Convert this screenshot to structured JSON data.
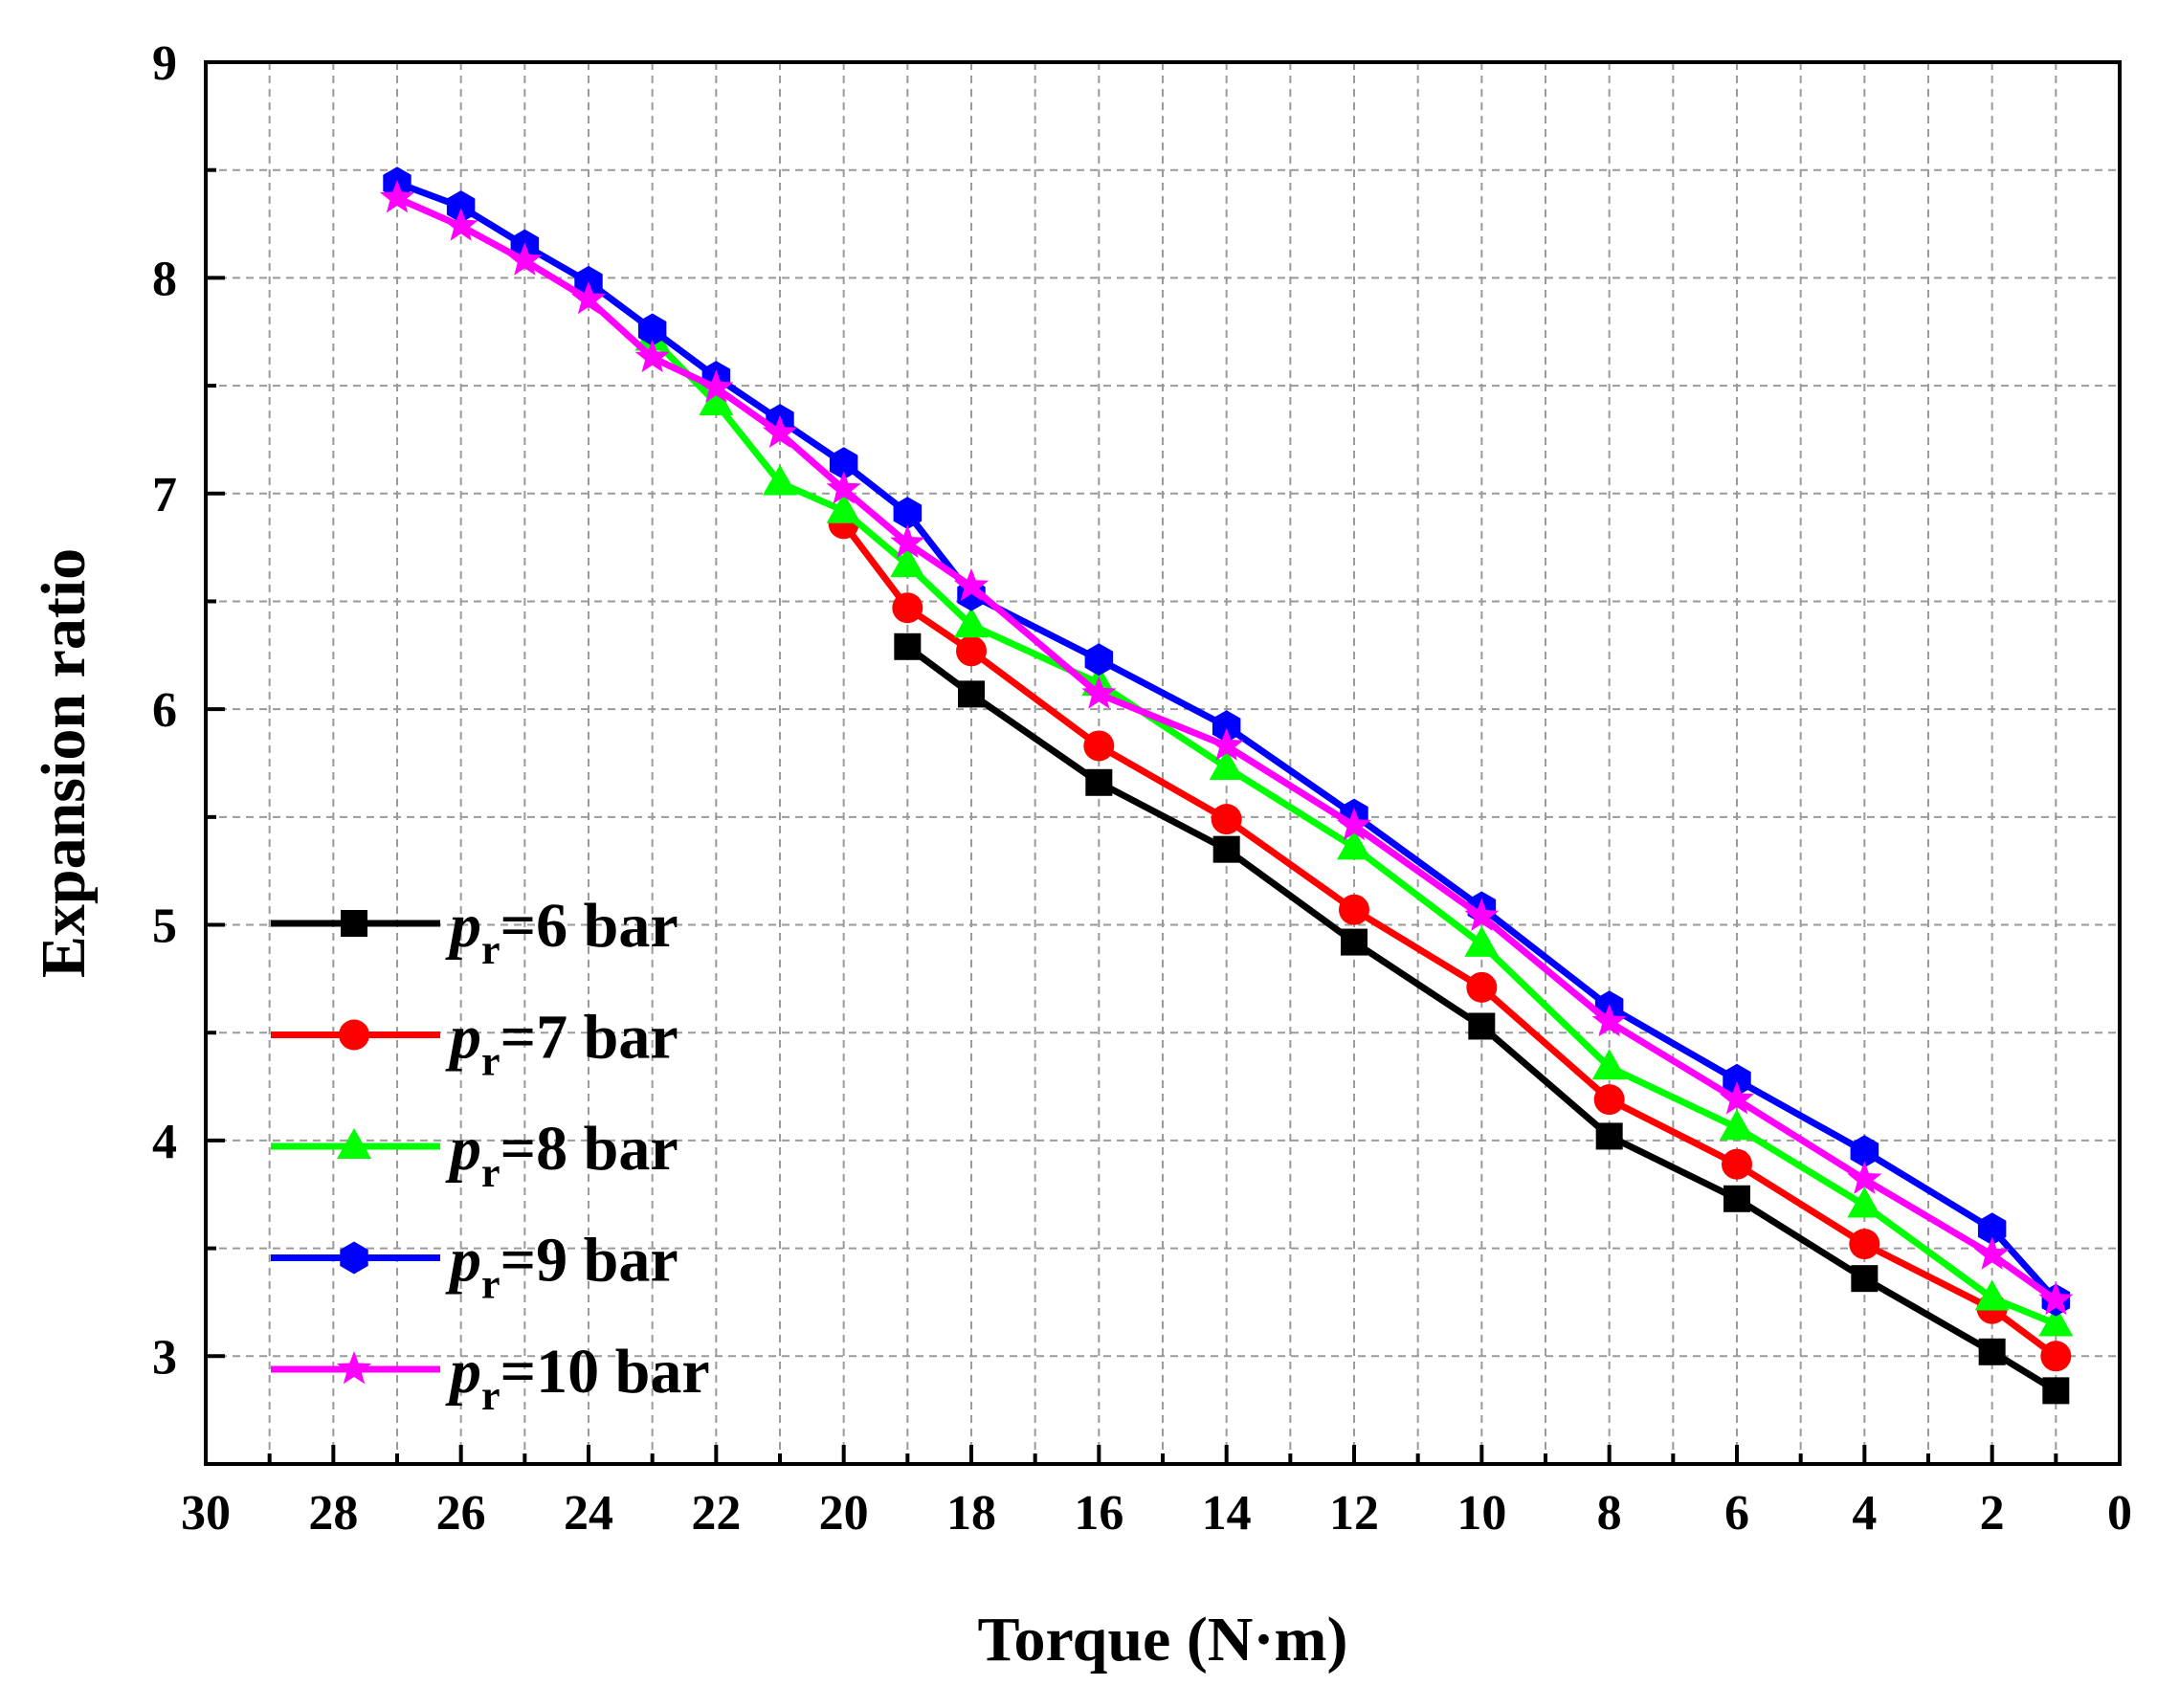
{
  "chart_data": {
    "type": "line",
    "title": "",
    "xlabel": "Torque (N·m)",
    "ylabel": "Expansion ratio",
    "xlim": [
      30,
      0
    ],
    "ylim": [
      2.5,
      9
    ],
    "x_ticks": [
      30,
      28,
      26,
      24,
      22,
      20,
      18,
      16,
      14,
      12,
      10,
      8,
      6,
      4,
      2,
      0
    ],
    "x_tick_labels": [
      "30",
      "28",
      "26",
      "24",
      "22",
      "20",
      "18",
      "16",
      "14",
      "12",
      "10",
      "8",
      "6",
      "4",
      "2",
      "0"
    ],
    "y_ticks": [
      3,
      4,
      5,
      6,
      7,
      8,
      9
    ],
    "y_tick_labels": [
      "3",
      "4",
      "5",
      "6",
      "7",
      "8",
      "9"
    ],
    "grid": true,
    "legend_position": "left",
    "series": [
      {
        "name": "pr=6 bar",
        "label_var": "p",
        "label_sub": "r",
        "label_rest": "=6 bar",
        "color": "#000000",
        "marker": "square",
        "x": [
          19,
          18,
          16,
          14,
          12,
          10,
          8,
          6,
          4,
          2,
          1
        ],
        "values": [
          6.29,
          6.07,
          5.66,
          5.35,
          4.92,
          4.53,
          4.02,
          3.73,
          3.36,
          3.02,
          2.84
        ]
      },
      {
        "name": "pr=7 bar",
        "label_var": "p",
        "label_sub": "r",
        "label_rest": "=7 bar",
        "color": "#ff0000",
        "marker": "circle",
        "x": [
          20,
          19,
          18,
          16,
          14,
          12,
          10,
          8,
          6,
          4,
          2,
          1
        ],
        "values": [
          6.86,
          6.47,
          6.27,
          5.83,
          5.49,
          5.07,
          4.71,
          4.19,
          3.89,
          3.52,
          3.22,
          3.0
        ]
      },
      {
        "name": "pr=8 bar",
        "label_var": "p",
        "label_sub": "r",
        "label_rest": "=8 bar",
        "color": "#00ff00",
        "marker": "triangle",
        "x": [
          23,
          22,
          21,
          20,
          19,
          18,
          16,
          14,
          12,
          10,
          8,
          6,
          4,
          2,
          1
        ],
        "values": [
          7.72,
          7.42,
          7.05,
          6.92,
          6.67,
          6.39,
          6.12,
          5.73,
          5.36,
          4.91,
          4.34,
          4.06,
          3.7,
          3.27,
          3.15
        ]
      },
      {
        "name": "pr=9 bar",
        "label_var": "p",
        "label_sub": "r",
        "label_rest": "=9 bar",
        "color": "#0000ff",
        "marker": "hexagon",
        "x": [
          27,
          26,
          25,
          24,
          23,
          22,
          21,
          20,
          19,
          18,
          16,
          14,
          12,
          10,
          8,
          6,
          4,
          2,
          1
        ],
        "values": [
          8.44,
          8.33,
          8.15,
          7.98,
          7.76,
          7.54,
          7.34,
          7.14,
          6.91,
          6.53,
          6.23,
          5.92,
          5.51,
          5.08,
          4.62,
          4.28,
          3.95,
          3.59,
          3.26
        ]
      },
      {
        "name": "pr=10 bar",
        "label_var": "p",
        "label_sub": "r",
        "label_rest": "=10 bar",
        "color": "#ff00ff",
        "marker": "star",
        "x": [
          27,
          26,
          25,
          24,
          23,
          22,
          21,
          20,
          19,
          18,
          16,
          14,
          12,
          10,
          8,
          6,
          4,
          2,
          1
        ],
        "values": [
          8.37,
          8.24,
          8.08,
          7.9,
          7.63,
          7.49,
          7.28,
          7.02,
          6.77,
          6.57,
          6.07,
          5.83,
          5.46,
          5.04,
          4.55,
          4.19,
          3.82,
          3.47,
          3.26
        ]
      }
    ]
  }
}
